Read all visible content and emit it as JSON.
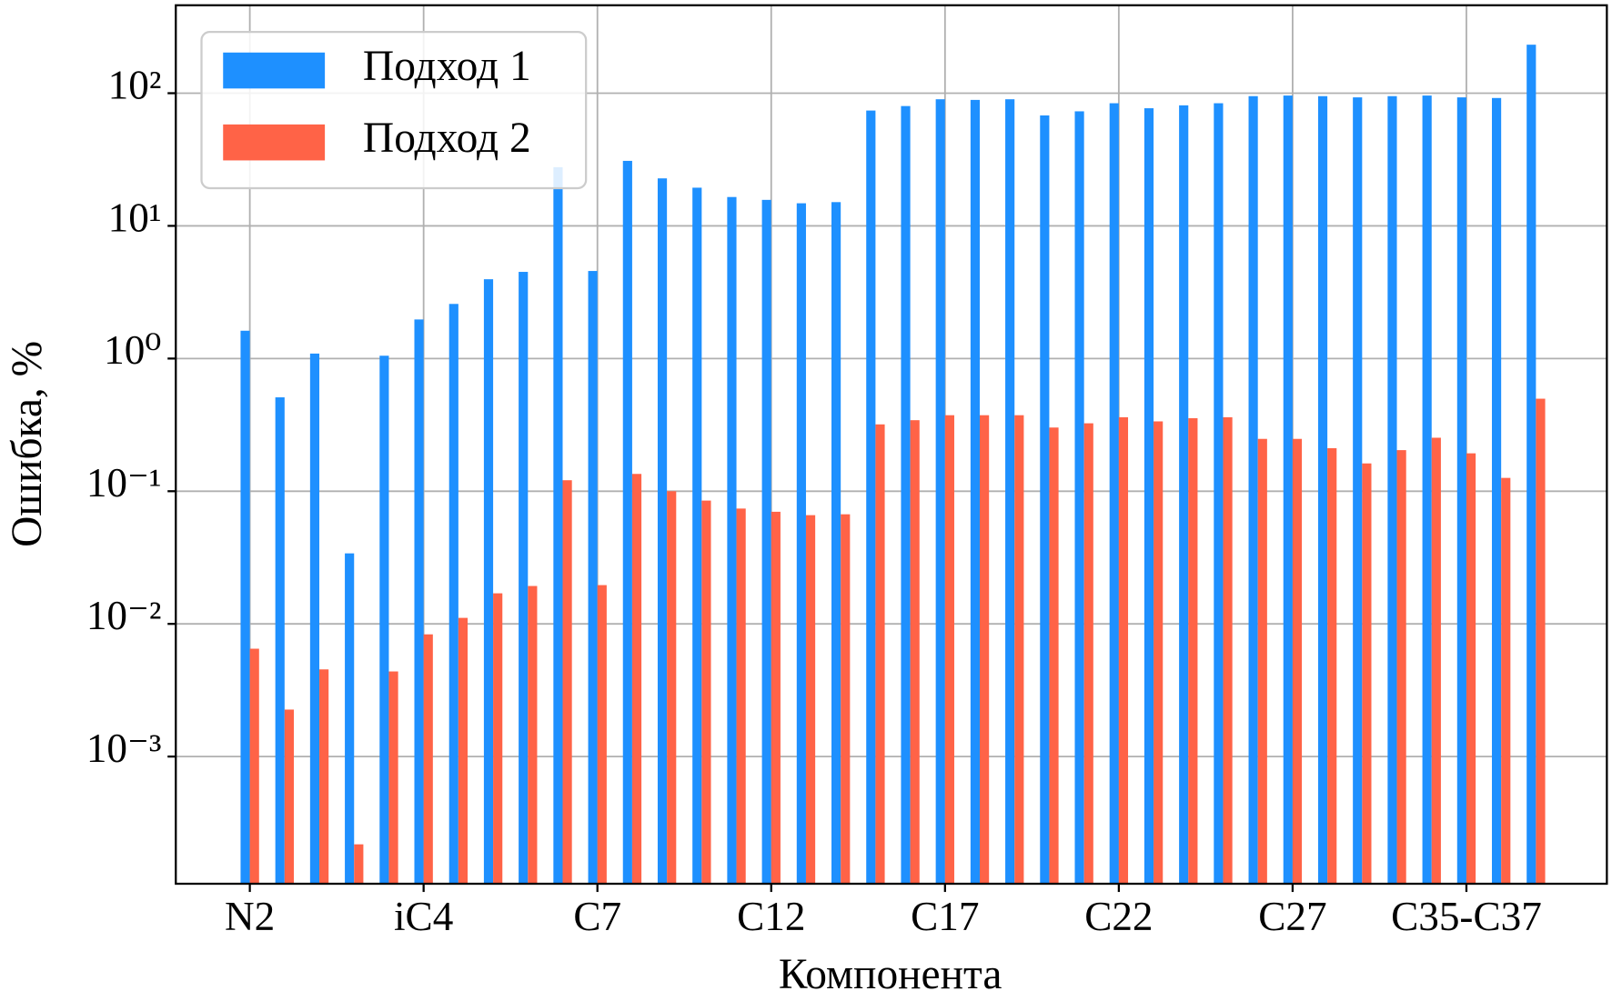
{
  "chart_data": {
    "type": "bar",
    "x_label": "Компонента",
    "y_label": "Ошибка, %",
    "log_y": true,
    "grid": true,
    "legend": "upper left",
    "categories": [
      "N2",
      null,
      null,
      null,
      null,
      "iC4",
      null,
      null,
      null,
      null,
      "C7",
      null,
      null,
      null,
      null,
      "C12",
      null,
      null,
      null,
      null,
      "C17",
      null,
      null,
      null,
      null,
      "C22",
      null,
      null,
      null,
      null,
      "C27",
      null,
      null,
      null,
      null,
      "C35-C37",
      null,
      null
    ],
    "series": [
      {
        "name": "Подход 1",
        "color": "#1e90ff",
        "values": [
          1.62,
          0.51,
          1.09,
          0.034,
          1.05,
          1.97,
          2.58,
          3.96,
          4.5,
          27.7,
          4.57,
          30.9,
          22.8,
          19.4,
          16.5,
          15.7,
          14.8,
          15.1,
          74,
          80,
          90,
          89,
          90,
          68,
          73,
          84,
          77,
          81,
          84,
          95,
          96,
          95,
          93,
          95,
          96,
          93,
          92,
          232
        ]
      },
      {
        "name": "Подход 2",
        "color": "#ff6347",
        "values": [
          0.0065,
          0.00226,
          0.00454,
          0.000218,
          0.00438,
          0.00834,
          0.0111,
          0.017,
          0.0193,
          0.121,
          0.0196,
          0.135,
          0.1,
          0.085,
          0.074,
          0.07,
          0.066,
          0.067,
          0.319,
          0.343,
          0.374,
          0.374,
          0.374,
          0.302,
          0.325,
          0.361,
          0.336,
          0.355,
          0.361,
          0.248,
          0.248,
          0.211,
          0.162,
          0.204,
          0.253,
          0.193,
          0.126,
          0.498
        ]
      }
    ],
    "ylim": [
      0.00011,
      460
    ],
    "yticks": [
      {
        "value": 0.001,
        "label": "10⁻³"
      },
      {
        "value": 0.01,
        "label": "10⁻²"
      },
      {
        "value": 0.1,
        "label": "10⁻¹"
      },
      {
        "value": 1,
        "label": "10⁰"
      },
      {
        "value": 10,
        "label": "10¹"
      },
      {
        "value": 100,
        "label": "10²"
      }
    ]
  }
}
